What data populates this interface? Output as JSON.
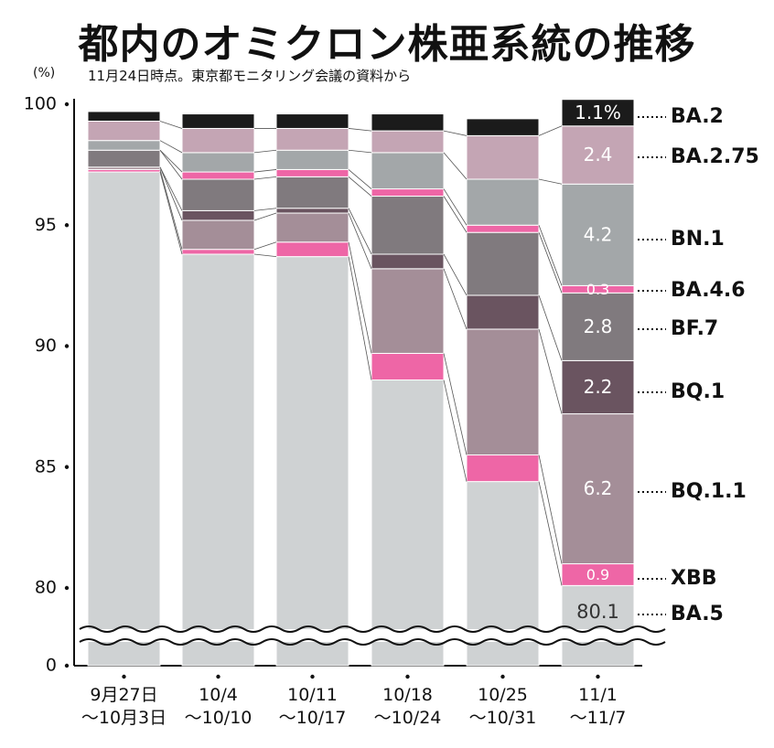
{
  "title": "都内のオミクロン株亜系統の推移",
  "subtitle": "11月24日時点。東京都モニタリング会議の資料から",
  "chart_data": {
    "type": "bar",
    "stacked": true,
    "unit_label": "(%)",
    "yticks": [
      0,
      80,
      85,
      90,
      95,
      100
    ],
    "axis_break": true,
    "categories": [
      [
        "9月27日",
        "〜10月3日"
      ],
      [
        "10/4",
        "〜10/10"
      ],
      [
        "10/11",
        "〜10/17"
      ],
      [
        "10/18",
        "〜10/24"
      ],
      [
        "10/25",
        "〜10/31"
      ],
      [
        "11/1",
        "〜11/7"
      ]
    ],
    "series": [
      {
        "name": "BA.5",
        "color": "#cfd2d3",
        "values": [
          97.2,
          93.8,
          93.7,
          88.6,
          84.4,
          80.1
        ]
      },
      {
        "name": "XBB",
        "color": "#ee66a6",
        "values": [
          0.1,
          0.2,
          0.6,
          1.1,
          1.1,
          0.9
        ]
      },
      {
        "name": "BQ.1.1",
        "color": "#a48e98",
        "values": [
          0.1,
          1.2,
          1.2,
          3.5,
          5.2,
          6.2
        ]
      },
      {
        "name": "BQ.1",
        "color": "#6a5460",
        "values": [
          0.0,
          0.4,
          0.2,
          0.6,
          1.4,
          2.2
        ]
      },
      {
        "name": "BF.7",
        "color": "#807a7e",
        "values": [
          0.7,
          1.3,
          1.3,
          2.4,
          2.6,
          2.8
        ]
      },
      {
        "name": "BA.4.6",
        "color": "#ee66a6",
        "values": [
          0.0,
          0.3,
          0.3,
          0.3,
          0.3,
          0.3
        ]
      },
      {
        "name": "BN.1",
        "color": "#a3a7a9",
        "values": [
          0.4,
          0.8,
          0.8,
          1.5,
          1.9,
          4.2
        ]
      },
      {
        "name": "BA.2.75",
        "color": "#c4a5b4",
        "values": [
          0.8,
          1.0,
          0.9,
          0.9,
          1.8,
          2.4
        ]
      },
      {
        "name": "BA.2",
        "color": "#1b1b1b",
        "values": [
          0.4,
          0.6,
          0.6,
          0.7,
          0.7,
          1.1
        ]
      }
    ],
    "data_labels": [
      "80.1",
      "0.9",
      "6.2",
      "2.2",
      "2.8",
      "0.3",
      "4.2",
      "2.4",
      "1.1%"
    ]
  }
}
